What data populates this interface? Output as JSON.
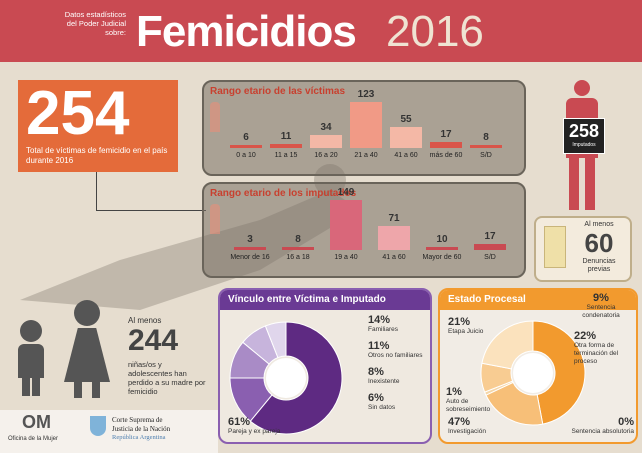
{
  "header": {
    "subtitle": "Datos estadísticos del Poder Judicial sobre:",
    "title": "Femicidios",
    "year": "2016"
  },
  "total": {
    "number": "254",
    "text": "Total de víctimas de femicidio en el país durante 2016"
  },
  "victims_age": {
    "title": "Rango etario de las víctimas",
    "bars": [
      {
        "label": "0 a 10",
        "value": "6",
        "n": 6
      },
      {
        "label": "11 a 15",
        "value": "11",
        "n": 11
      },
      {
        "label": "16 a 20",
        "value": "34",
        "n": 34
      },
      {
        "label": "21 a 40",
        "value": "123",
        "n": 123
      },
      {
        "label": "41 a 60",
        "value": "55",
        "n": 55
      },
      {
        "label": "más de 60",
        "value": "17",
        "n": 17
      },
      {
        "label": "S/D",
        "value": "8",
        "n": 8
      }
    ]
  },
  "accused_age": {
    "title": "Rango etario de los imputados",
    "bars": [
      {
        "label": "Menor de 16",
        "value": "3",
        "n": 3
      },
      {
        "label": "16 a 18",
        "value": "8",
        "n": 8
      },
      {
        "label": "19 a 40",
        "value": "149",
        "n": 149
      },
      {
        "label": "41 a 60",
        "value": "71",
        "n": 71
      },
      {
        "label": "Mayor de 60",
        "value": "10",
        "n": 10
      },
      {
        "label": "S/D",
        "value": "17",
        "n": 17
      }
    ]
  },
  "imputados": {
    "number": "258",
    "label": "Imputados"
  },
  "denuncias": {
    "prefix": "Al menos",
    "number": "60",
    "label": "Denuncias previas"
  },
  "children": {
    "prefix": "Al menos",
    "number": "244",
    "text": "niñas/os y adolescentes han perdido a su madre por femicidio"
  },
  "vinculo": {
    "title": "Vínculo entre Víctima e Imputado",
    "items": [
      {
        "pct": "61%",
        "label": "Pareja y ex pareja",
        "value": 61,
        "color": "#5e2a82"
      },
      {
        "pct": "14%",
        "label": "Familiares",
        "value": 14,
        "color": "#8a5fb0"
      },
      {
        "pct": "11%",
        "label": "Otros no familiares",
        "value": 11,
        "color": "#a98bc6"
      },
      {
        "pct": "8%",
        "label": "Inexistente",
        "value": 8,
        "color": "#c7b4dc"
      },
      {
        "pct": "6%",
        "label": "Sin datos",
        "value": 6,
        "color": "#e0d6ec"
      }
    ]
  },
  "estado": {
    "title": "Estado Procesal",
    "items": [
      {
        "pct": "47%",
        "label": "Investigación",
        "value": 47,
        "color": "#f29a2e"
      },
      {
        "pct": "21%",
        "label": "Etapa Juicio",
        "value": 21,
        "color": "#f7bf78"
      },
      {
        "pct": "1%",
        "label": "Auto de sobreseimiento",
        "value": 1,
        "color": "#f5d6a8"
      },
      {
        "pct": "9%",
        "label": "Sentencia condenatoria",
        "value": 9,
        "color": "#f8cc92"
      },
      {
        "pct": "22%",
        "label": "Otra forma de terminación del proceso",
        "value": 22,
        "color": "#fbe2bd"
      },
      {
        "pct": "0%",
        "label": "Sentencia absolutoria",
        "value": 0,
        "color": "#fff"
      }
    ]
  },
  "footer": {
    "om_logo": "OM",
    "om_name": "Oficina de la Mujer",
    "court_line1": "Corte Suprema de",
    "court_line2": "Justicia de la Nación",
    "court_line3": "República Argentina"
  },
  "colors": {
    "red": "#c94a52",
    "orange": "#e46b3a",
    "purple": "#5e2a82",
    "amber": "#f29a2e"
  }
}
